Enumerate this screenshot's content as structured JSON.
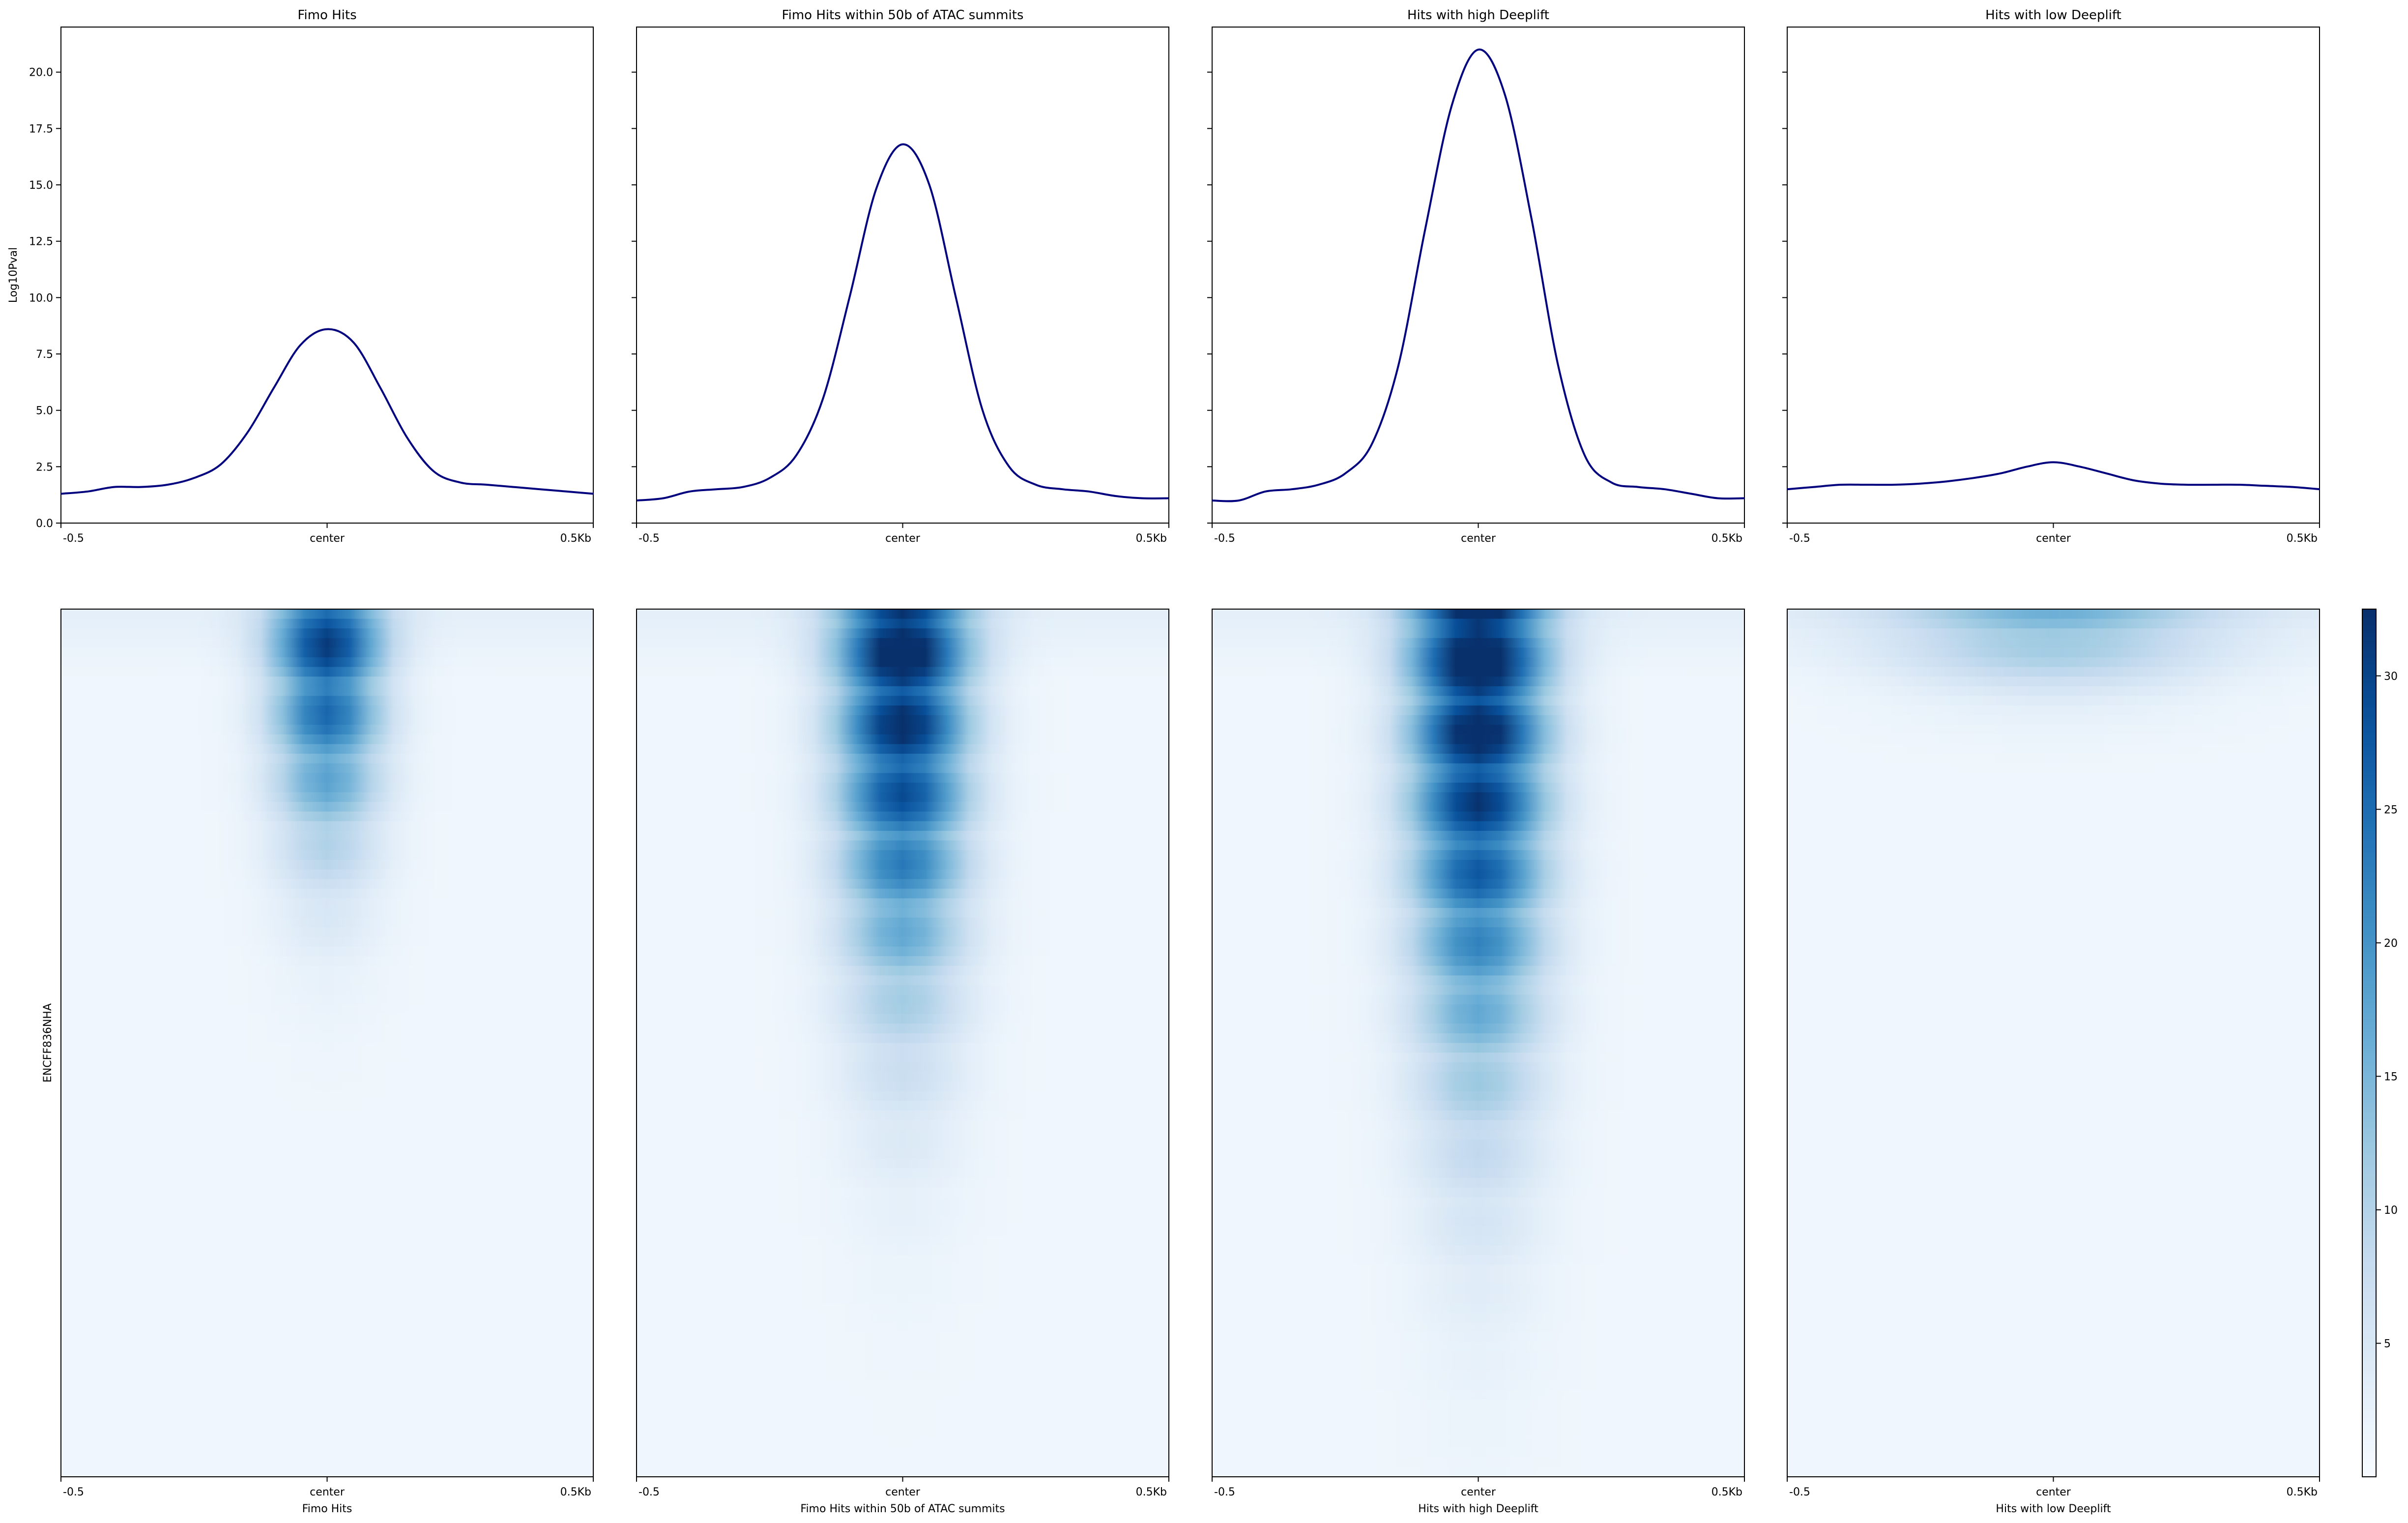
{
  "chart_data": [
    {
      "type": "line",
      "title": "Fimo Hits",
      "ylabel": "Log10Pval",
      "xlabel": "",
      "x_ticks": [
        "-0.5",
        "center",
        "0.5Kb"
      ],
      "y_ticks": [
        "0.0",
        "2.5",
        "5.0",
        "7.5",
        "10.0",
        "12.5",
        "15.0",
        "17.5",
        "20.0"
      ],
      "ylim": [
        0,
        22
      ],
      "line_color": "#00007f",
      "x": [
        -0.5,
        -0.45,
        -0.4,
        -0.35,
        -0.3,
        -0.25,
        -0.2,
        -0.15,
        -0.1,
        -0.05,
        0,
        0.05,
        0.1,
        0.15,
        0.2,
        0.25,
        0.3,
        0.35,
        0.4,
        0.45,
        0.5
      ],
      "values": [
        1.3,
        1.4,
        1.6,
        1.6,
        1.7,
        2.0,
        2.6,
        4.0,
        6.0,
        7.9,
        8.6,
        8.0,
        6.0,
        3.8,
        2.3,
        1.8,
        1.7,
        1.6,
        1.5,
        1.4,
        1.3
      ]
    },
    {
      "type": "line",
      "title": "Fimo Hits within 50b of ATAC summits",
      "ylabel": "",
      "xlabel": "",
      "x_ticks": [
        "-0.5",
        "center",
        "0.5Kb"
      ],
      "ylim": [
        0,
        22
      ],
      "line_color": "#00007f",
      "x": [
        -0.5,
        -0.45,
        -0.4,
        -0.35,
        -0.3,
        -0.25,
        -0.2,
        -0.15,
        -0.1,
        -0.05,
        0,
        0.05,
        0.1,
        0.15,
        0.2,
        0.25,
        0.3,
        0.35,
        0.4,
        0.45,
        0.5
      ],
      "values": [
        1.0,
        1.1,
        1.4,
        1.5,
        1.6,
        2.0,
        3.0,
        5.5,
        10.0,
        14.8,
        16.8,
        15.0,
        10.0,
        5.0,
        2.5,
        1.7,
        1.5,
        1.4,
        1.2,
        1.1,
        1.1
      ]
    },
    {
      "type": "line",
      "title": "Hits with high Deeplift",
      "ylabel": "",
      "xlabel": "",
      "x_ticks": [
        "-0.5",
        "center",
        "0.5Kb"
      ],
      "ylim": [
        0,
        22
      ],
      "line_color": "#00007f",
      "x": [
        -0.5,
        -0.45,
        -0.4,
        -0.35,
        -0.3,
        -0.25,
        -0.2,
        -0.15,
        -0.1,
        -0.05,
        0,
        0.05,
        0.1,
        0.15,
        0.2,
        0.25,
        0.3,
        0.35,
        0.4,
        0.45,
        0.5
      ],
      "values": [
        1.0,
        1.0,
        1.4,
        1.5,
        1.7,
        2.2,
        3.5,
        7.0,
        13.0,
        18.5,
        21.0,
        19.0,
        13.5,
        7.0,
        3.0,
        1.8,
        1.6,
        1.5,
        1.3,
        1.1,
        1.1
      ]
    },
    {
      "type": "line",
      "title": "Hits with low Deeplift",
      "ylabel": "",
      "xlabel": "",
      "x_ticks": [
        "-0.5",
        "center",
        "0.5Kb"
      ],
      "ylim": [
        0,
        22
      ],
      "line_color": "#00007f",
      "x": [
        -0.5,
        -0.45,
        -0.4,
        -0.35,
        -0.3,
        -0.25,
        -0.2,
        -0.15,
        -0.1,
        -0.05,
        0,
        0.05,
        0.1,
        0.15,
        0.2,
        0.25,
        0.3,
        0.35,
        0.4,
        0.45,
        0.5
      ],
      "values": [
        1.5,
        1.6,
        1.7,
        1.7,
        1.7,
        1.75,
        1.85,
        2.0,
        2.2,
        2.5,
        2.7,
        2.5,
        2.2,
        1.9,
        1.75,
        1.7,
        1.7,
        1.7,
        1.65,
        1.6,
        1.5
      ]
    },
    {
      "type": "heatmap",
      "title": "",
      "ylabel": "ENCFF836NHA",
      "xlabel": "Fimo Hits",
      "x_ticks": [
        "-0.5",
        "center",
        "0.5Kb"
      ],
      "colormap": "Blues",
      "vmin": 0,
      "vmax": 32.5,
      "peak_value": 26,
      "peak_width_kb": 0.17,
      "signal_extent_fraction": 0.35
    },
    {
      "type": "heatmap",
      "title": "",
      "ylabel": "",
      "xlabel": "Fimo Hits within 50b of ATAC summits",
      "x_ticks": [
        "-0.5",
        "center",
        "0.5Kb"
      ],
      "colormap": "Blues",
      "vmin": 0,
      "vmax": 32.5,
      "peak_value": 31,
      "peak_width_kb": 0.2,
      "signal_extent_fraction": 0.56
    },
    {
      "type": "heatmap",
      "title": "",
      "ylabel": "",
      "xlabel": "Hits with high Deeplift",
      "x_ticks": [
        "-0.5",
        "center",
        "0.5Kb"
      ],
      "colormap": "Blues",
      "vmin": 0,
      "vmax": 32.5,
      "peak_value": 32,
      "peak_width_kb": 0.21,
      "signal_extent_fraction": 0.68
    },
    {
      "type": "heatmap",
      "title": "",
      "ylabel": "",
      "xlabel": "Hits with low Deeplift",
      "x_ticks": [
        "-0.5",
        "center",
        "0.5Kb"
      ],
      "colormap": "Blues",
      "vmin": 0,
      "vmax": 32.5,
      "peak_value": 12,
      "peak_width_kb": 0.5,
      "signal_extent_fraction": 0.12
    }
  ],
  "colorbar": {
    "ticks": [
      5,
      10,
      15,
      20,
      25,
      30
    ],
    "range": [
      0,
      32.5
    ],
    "colormap": "Blues"
  }
}
